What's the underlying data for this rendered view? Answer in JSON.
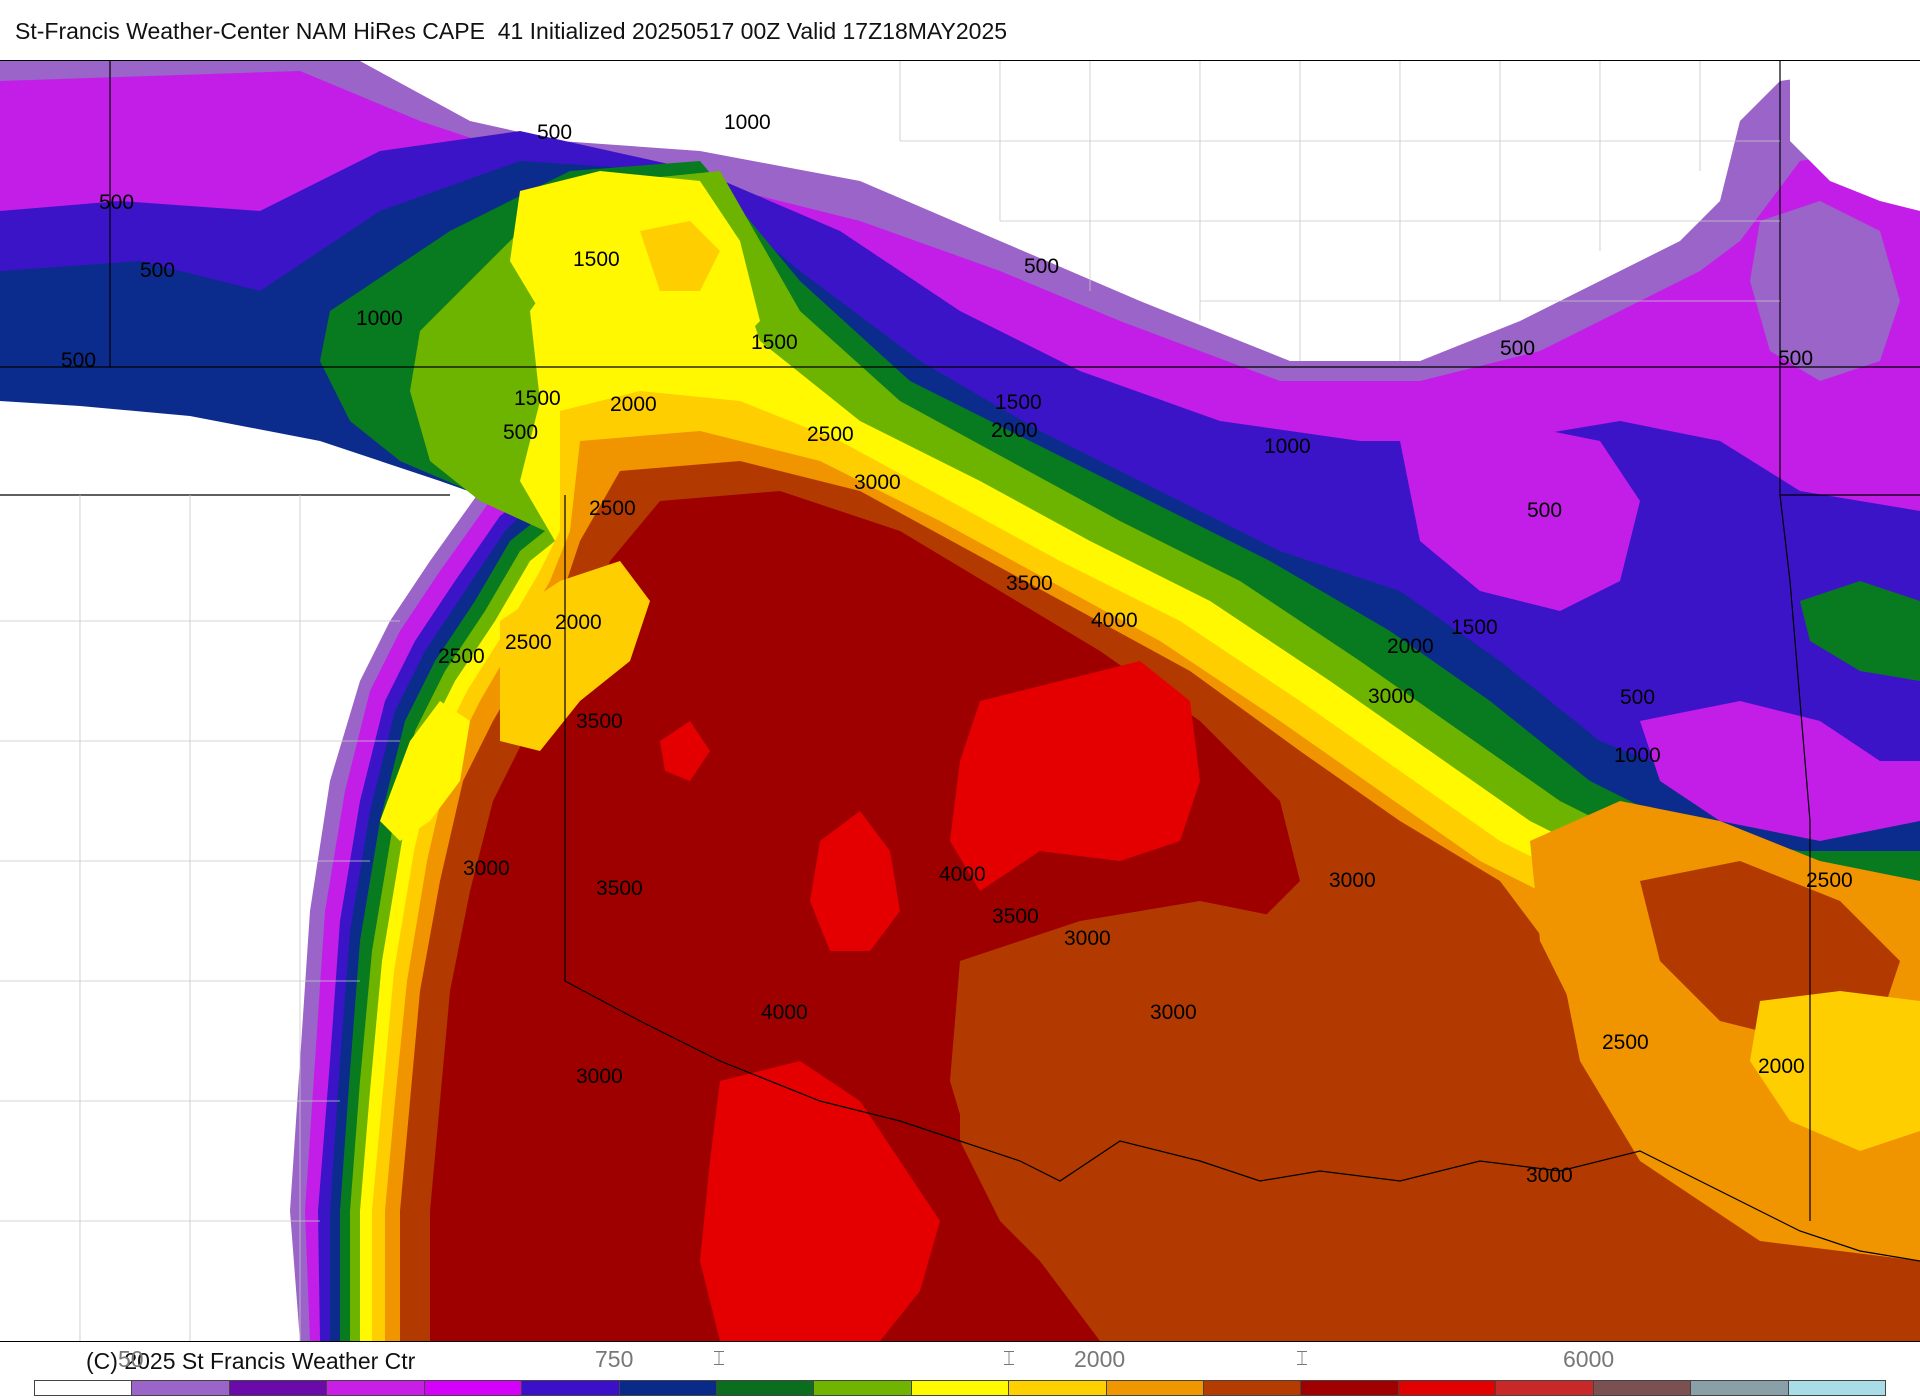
{
  "title": "St-Francis Weather-Center NAM HiRes CAPE  41 Initialized 20250517 00Z Valid 17Z18MAY2025",
  "copyright": "(C) 2025 St Francis Weather Ctr",
  "colorbar": {
    "colors": [
      "#ffffff",
      "#9a64c8",
      "#6a0aa8",
      "#c81ee6",
      "#d500f9",
      "#3a10c8",
      "#0a2a8a",
      "#0a6e1e",
      "#6fb400",
      "#fffa00",
      "#ffd000",
      "#f09600",
      "#b43c00",
      "#a00000",
      "#e00000",
      "#c82828",
      "#7a5050",
      "#8aa0a8",
      "#a8dce6"
    ],
    "tick_labels": [
      {
        "key": "t50",
        "text": "50"
      },
      {
        "key": "t750",
        "text": "750"
      },
      {
        "key": "t2000",
        "text": "2000"
      },
      {
        "key": "t6000",
        "text": "6000"
      }
    ]
  },
  "map": {
    "field": "CAPE",
    "fill_colors": {
      "lt500": "#c21ee8",
      "lvl500": "#3c14c8",
      "lvl750": "#0b2c8c",
      "lvl1000": "#087a20",
      "lvl1250": "#6cb400",
      "lvl1500": "#fff800",
      "lvl2000": "#ffce00",
      "lvl2500": "#f09400",
      "lvl3000": "#b23a00",
      "lvl3500": "#9e0000",
      "lvl4000": "#e40000",
      "fringe": "#9a64c8"
    },
    "contour_labels": [
      {
        "id": "c1",
        "text": "1000"
      },
      {
        "id": "c2",
        "text": "500"
      },
      {
        "id": "c3",
        "text": "500"
      },
      {
        "id": "c4",
        "text": "500"
      },
      {
        "id": "c5",
        "text": "1500"
      },
      {
        "id": "c6",
        "text": "1000"
      },
      {
        "id": "c7",
        "text": "500"
      },
      {
        "id": "c8",
        "text": "1500"
      },
      {
        "id": "c9",
        "text": "500"
      },
      {
        "id": "c10",
        "text": "500"
      },
      {
        "id": "c11",
        "text": "500"
      },
      {
        "id": "c12",
        "text": "1500"
      },
      {
        "id": "c13",
        "text": "2000"
      },
      {
        "id": "c14",
        "text": "1500"
      },
      {
        "id": "c15",
        "text": "500"
      },
      {
        "id": "c16",
        "text": "2000"
      },
      {
        "id": "c17",
        "text": "2500"
      },
      {
        "id": "c18",
        "text": "1000"
      },
      {
        "id": "c19",
        "text": "3000"
      },
      {
        "id": "c20",
        "text": "2500"
      },
      {
        "id": "c21",
        "text": "500"
      },
      {
        "id": "c22",
        "text": "3500"
      },
      {
        "id": "c23",
        "text": "4000"
      },
      {
        "id": "c24",
        "text": "2000"
      },
      {
        "id": "c25",
        "text": "2000"
      },
      {
        "id": "c26",
        "text": "1500"
      },
      {
        "id": "c27",
        "text": "2500"
      },
      {
        "id": "c28",
        "text": "2500"
      },
      {
        "id": "c29",
        "text": "3000"
      },
      {
        "id": "c30",
        "text": "500"
      },
      {
        "id": "c31",
        "text": "3500"
      },
      {
        "id": "c32",
        "text": "1000"
      },
      {
        "id": "c33",
        "text": "3000"
      },
      {
        "id": "c34",
        "text": "3500"
      },
      {
        "id": "c35",
        "text": "4000"
      },
      {
        "id": "c36",
        "text": "3000"
      },
      {
        "id": "c37",
        "text": "2500"
      },
      {
        "id": "c38",
        "text": "3500"
      },
      {
        "id": "c39",
        "text": "3000"
      },
      {
        "id": "c40",
        "text": "3000"
      },
      {
        "id": "c41",
        "text": "4000"
      },
      {
        "id": "c42",
        "text": "2500"
      },
      {
        "id": "c43",
        "text": "3000"
      },
      {
        "id": "c44",
        "text": "2000"
      },
      {
        "id": "c45",
        "text": "3000"
      }
    ]
  }
}
